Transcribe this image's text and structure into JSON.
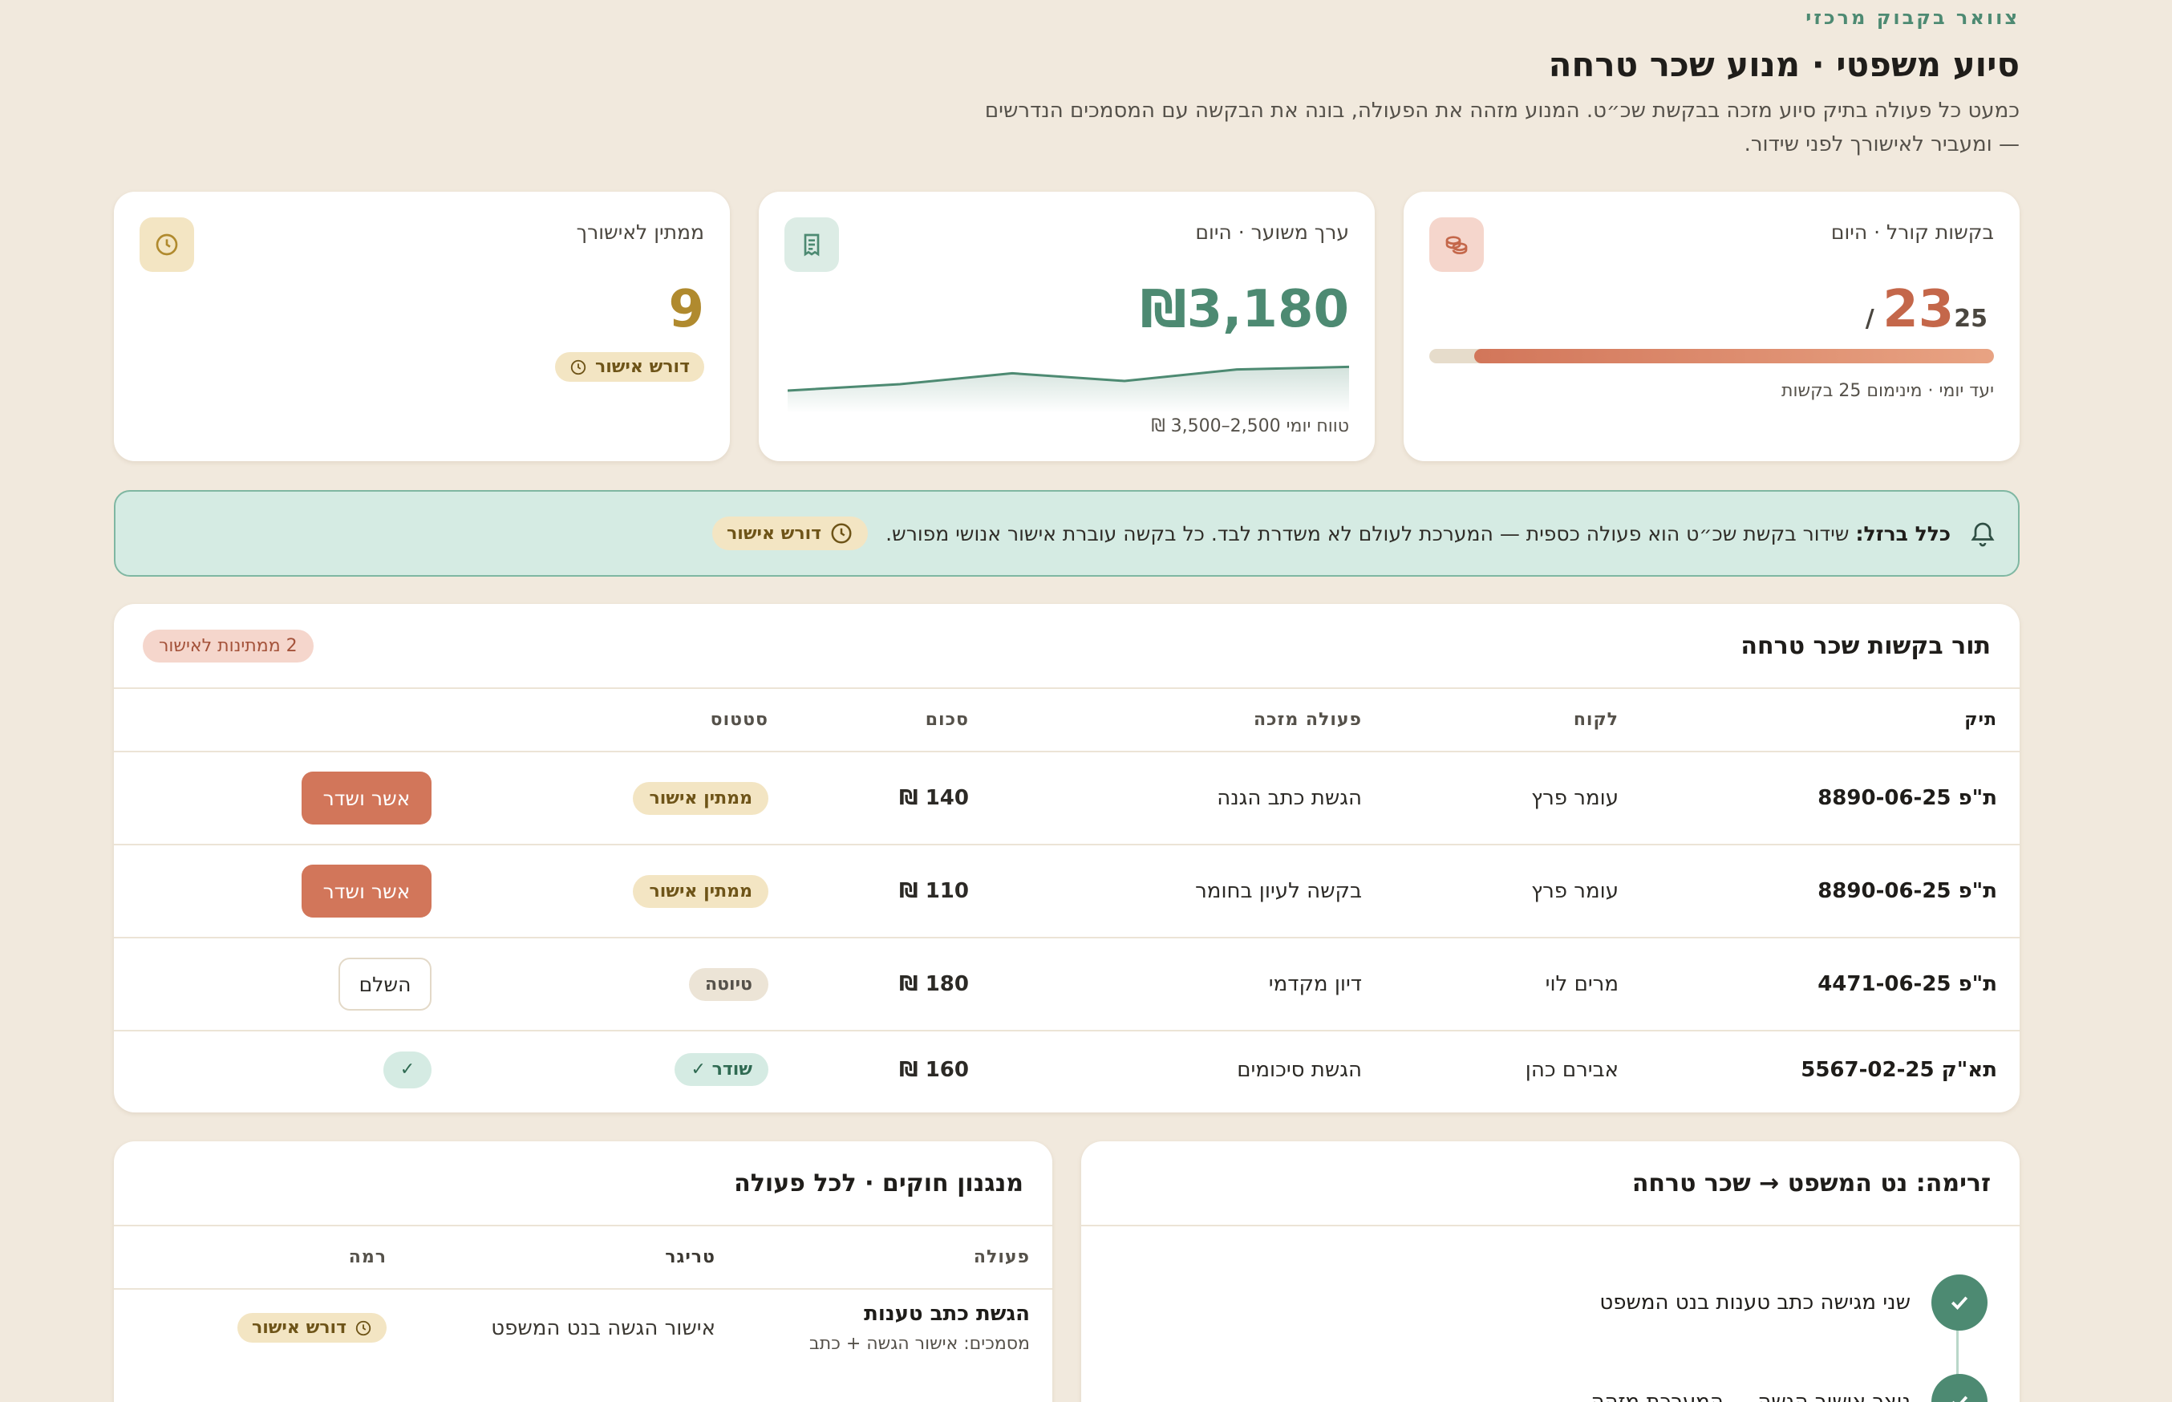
{
  "header": {
    "eyebrow": "צוואר בקבוק מרכזי",
    "title": "סיוע משפטי · מנוע שכר טרחה",
    "subtitle": "כמעט כל פעולה בתיק סיוע מזכה בבקשת שכ״ט. המנוע מזהה את הפעולה, בונה את הבקשה עם המסמכים הנדרשים — ומעביר לאישורך לפני שידור."
  },
  "cards": {
    "requests": {
      "label": "בקשות קורל · היום",
      "value": "23",
      "of": "25 /",
      "progress_fraction": 0.92,
      "note": "יעד יומי · מינימום 25 בקשות",
      "icon": "coins-icon",
      "accent": "#c4674a"
    },
    "value": {
      "label": "ערך משוער · היום",
      "value": "₪3,180",
      "note": "טווח יומי 2,500–3,500 ₪",
      "icon": "receipt-icon",
      "accent": "#4d8a72",
      "trend": [
        0.35,
        0.45,
        0.62,
        0.5,
        0.68,
        0.72
      ]
    },
    "pending": {
      "label": "ממתין לאישורך",
      "value": "9",
      "pill": "דורש אישור",
      "icon": "clock-icon",
      "accent": "#b08a2e"
    }
  },
  "alert": {
    "lead": "כלל ברזל:",
    "text": " שידור בקשת שכ״ט הוא פעולה כספית — המערכת לעולם לא משדרת לבד. כל בקשה עוברת אישור אנושי מפורש.",
    "pill": "דורש אישור"
  },
  "queue": {
    "title": "תור בקשות שכר טרחה",
    "badge": "2 ממתינות לאישור",
    "columns": [
      "תיק",
      "לקוח",
      "פעולה מזכה",
      "סכום",
      "סטטוס",
      ""
    ],
    "rows": [
      {
        "file": "ת\"פ 8890-06-25",
        "client": "עומר פרץ",
        "action": "הגשת כתב הגנה",
        "amount": "140 ₪",
        "status": "ממתין אישור",
        "button": "אשר ושדר"
      },
      {
        "file": "ת\"פ 8890-06-25",
        "client": "עומר פרץ",
        "action": "בקשה לעיון בחומר",
        "amount": "110 ₪",
        "status": "ממתין אישור",
        "button": "אשר ושדר"
      },
      {
        "file": "ת\"פ 4471-06-25",
        "client": "מרים לוי",
        "action": "דיון מקדמי",
        "amount": "180 ₪",
        "status": "טיוטה",
        "button": "השלם"
      },
      {
        "file": "תא\"ק 5567-02-25",
        "client": "אבירם כהן",
        "action": "הגשת סיכומים",
        "amount": "160 ₪",
        "status": "שודר ✓",
        "button": "✓"
      }
    ]
  },
  "flow": {
    "title": "זרימה: נט המשפט → שכר טרחה",
    "steps": [
      "שני מגישה כתב טענות בנט המשפט",
      "נוצר אישור הגשה — המערכת מזהה"
    ]
  },
  "rules": {
    "title": "מנגנון חוקים · לכל פעולה",
    "columns": [
      "פעולה",
      "טריגר",
      "רמה"
    ],
    "rows": [
      {
        "action": "הגשת כתב טענות",
        "docs": "מסמכים: אישור הגשה + כתב",
        "trigger": "אישור הגשה בנט המשפט",
        "level": "דורש אישור"
      }
    ]
  }
}
